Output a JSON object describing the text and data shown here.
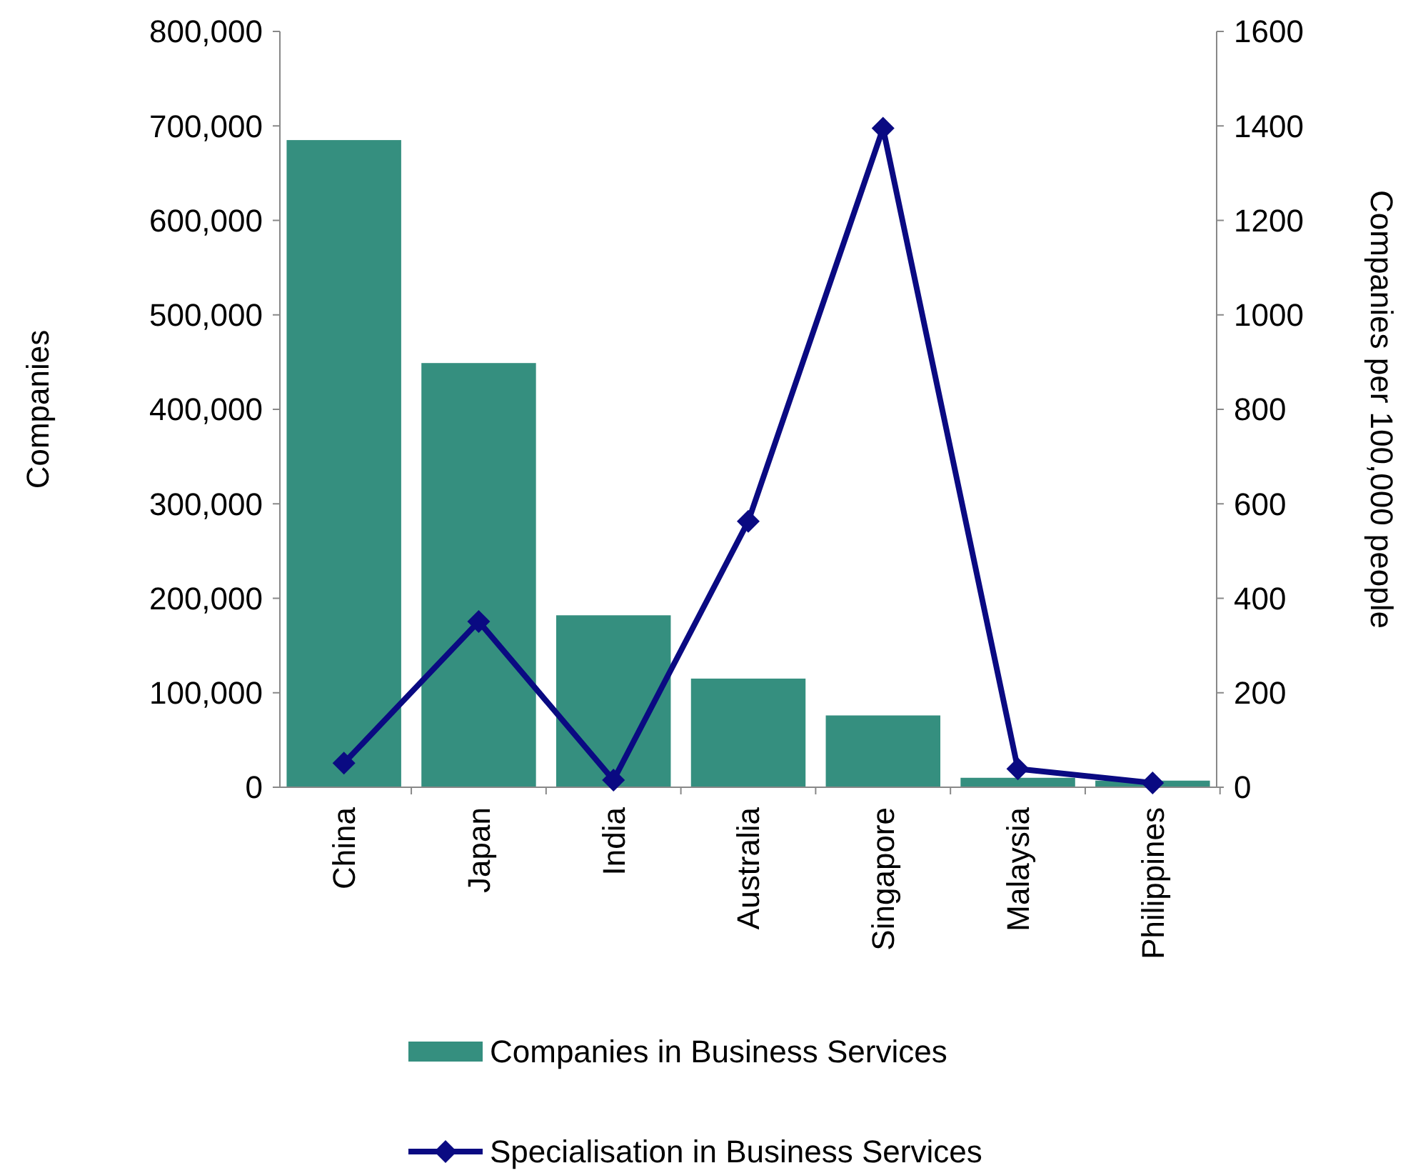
{
  "chart_data": {
    "type": "bar",
    "categories": [
      "China",
      "Japan",
      "India",
      "Australia",
      "Singapore",
      "Malaysia",
      "Philippines"
    ],
    "series": [
      {
        "name": "Companies in Business Services",
        "color": "#358f7f",
        "values": [
          685000,
          449000,
          182000,
          115000,
          76000,
          10000,
          7000
        ]
      },
      {
        "name": "Specialisation in Business Services",
        "type": "line",
        "axis": "y2",
        "color": "#0a0a82",
        "marker": "diamond",
        "values": [
          51,
          351,
          15,
          563,
          1395,
          39,
          9
        ]
      }
    ],
    "ylabel": "Companies",
    "y2label": "Companies per 100,000 people",
    "ylim": [
      0,
      800000
    ],
    "yticks": [
      {
        "value": 0,
        "label": "0"
      },
      {
        "value": 100000,
        "label": "100,000"
      },
      {
        "value": 200000,
        "label": "200,000"
      },
      {
        "value": 300000,
        "label": "300,000"
      },
      {
        "value": 400000,
        "label": "400,000"
      },
      {
        "value": 500000,
        "label": "500,000"
      },
      {
        "value": 600000,
        "label": "600,000"
      },
      {
        "value": 700000,
        "label": "700,000"
      },
      {
        "value": 800000,
        "label": "800,000"
      }
    ],
    "y2lim": [
      0,
      1600
    ],
    "y2ticks": [
      0,
      200,
      400,
      600,
      800,
      1000,
      1200,
      1400,
      1600
    ],
    "grid": false,
    "legend": "bottom"
  }
}
